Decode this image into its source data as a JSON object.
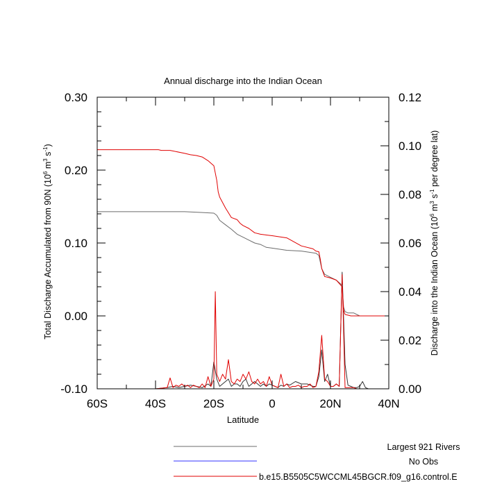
{
  "chart_data": {
    "type": "line",
    "title": "Annual discharge into the Indian Ocean",
    "xlabel": "Latitude",
    "ylabel_left": {
      "prefix": "Total Discharge Accumulated from 90N (10",
      "exp1": "6",
      "mid": " m",
      "exp2": "3",
      "mid2": " s",
      "exp3": "-1",
      "suffix": ")"
    },
    "ylabel_right": {
      "prefix": "Discharge into the Indian Ocean (10",
      "exp1": "6",
      "mid": " m",
      "exp2": "3",
      "mid2": " s",
      "exp3": "-1",
      "suffix": " per degree lat)"
    },
    "xlim": [
      -60,
      40
    ],
    "ylim_left": [
      -0.1,
      0.3
    ],
    "ylim_right": [
      0.0,
      0.12
    ],
    "x_ticks": [
      {
        "value": -60,
        "label": "60S"
      },
      {
        "value": -40,
        "label": "40S"
      },
      {
        "value": -20,
        "label": "20S"
      },
      {
        "value": 0,
        "label": "0"
      },
      {
        "value": 20,
        "label": "20N"
      },
      {
        "value": 40,
        "label": "40N"
      }
    ],
    "y_ticks_left": [
      {
        "value": 0.3,
        "label": "0.30"
      },
      {
        "value": 0.2,
        "label": "0.20"
      },
      {
        "value": 0.1,
        "label": "0.10"
      },
      {
        "value": 0.0,
        "label": "0.00"
      },
      {
        "value": -0.1,
        "label": "-0.10"
      }
    ],
    "y_ticks_right": [
      {
        "value": 0.12,
        "label": "0.12"
      },
      {
        "value": 0.1,
        "label": "0.10"
      },
      {
        "value": 0.08,
        "label": "0.08"
      },
      {
        "value": 0.06,
        "label": "0.06"
      },
      {
        "value": 0.04,
        "label": "0.04"
      },
      {
        "value": 0.02,
        "label": "0.02"
      },
      {
        "value": 0.0,
        "label": "0.00"
      }
    ],
    "series": [
      {
        "name": "Largest 921 Rivers",
        "color": "#6b6b6b",
        "axis": "left",
        "x": [
          -60,
          -40,
          -30,
          -25,
          -20,
          -19,
          -18,
          -16,
          -14,
          -12,
          -10,
          -8,
          -6,
          -4,
          -2,
          0,
          5,
          10,
          15,
          16,
          17,
          18,
          20,
          22,
          24,
          24.5,
          25,
          26,
          28,
          30,
          40
        ],
        "y": [
          0.143,
          0.143,
          0.143,
          0.142,
          0.141,
          0.138,
          0.131,
          0.125,
          0.119,
          0.112,
          0.108,
          0.104,
          0.1,
          0.098,
          0.094,
          0.093,
          0.09,
          0.089,
          0.086,
          0.083,
          0.065,
          0.057,
          0.053,
          0.049,
          0.042,
          0.012,
          0.006,
          0.004,
          0.004,
          0.0,
          0.0
        ]
      },
      {
        "name": "No Obs",
        "color": "#3333ff",
        "axis": "left",
        "x": [],
        "y": []
      },
      {
        "name": "b.e15.B5505C5WCCML45BGCR.f09_g16.control.E",
        "color": "#e00000",
        "axis": "left",
        "x": [
          -60,
          -40,
          -39,
          -38,
          -35,
          -30,
          -28,
          -26,
          -24,
          -22,
          -20,
          -19,
          -18.5,
          -18,
          -16,
          -14,
          -12,
          -11,
          -10,
          -8,
          -6,
          -4,
          -2,
          0,
          5,
          10,
          14,
          15,
          16,
          16.5,
          17,
          18,
          20,
          22,
          24,
          24.5,
          25,
          27,
          30,
          40
        ],
        "y": [
          0.228,
          0.228,
          0.228,
          0.227,
          0.227,
          0.223,
          0.221,
          0.22,
          0.218,
          0.213,
          0.206,
          0.186,
          0.17,
          0.163,
          0.148,
          0.135,
          0.132,
          0.127,
          0.124,
          0.12,
          0.114,
          0.112,
          0.111,
          0.11,
          0.107,
          0.096,
          0.092,
          0.089,
          0.088,
          0.078,
          0.065,
          0.054,
          0.052,
          0.049,
          0.04,
          0.008,
          0.002,
          0.0,
          0.0,
          0.0
        ]
      }
    ],
    "spikes": [
      {
        "name": "Largest 921 Rivers",
        "color": "#333333",
        "axis": "right",
        "x": [
          -60,
          -50,
          -40,
          -36,
          -34,
          -32,
          -30,
          -28,
          -26,
          -24,
          -22,
          -21,
          -20,
          -19,
          -18,
          -17,
          -16,
          -15,
          -14,
          -13,
          -12,
          -11,
          -10,
          -9,
          -8,
          -7,
          -6,
          -5,
          -4,
          -3,
          -2,
          -1,
          0,
          1,
          2,
          3,
          4,
          5,
          6,
          8,
          10,
          12,
          14,
          15,
          16,
          17,
          18,
          19,
          20,
          21,
          22,
          23,
          24,
          25,
          26,
          27,
          28,
          29,
          30,
          31,
          32,
          33,
          40
        ],
        "y": [
          0,
          0,
          0,
          0.0005,
          0.001,
          0.0005,
          0.001,
          0.0015,
          0.001,
          0.0005,
          0.002,
          0.001,
          0.011,
          0.004,
          0.001,
          0.002,
          0.003,
          0.004,
          0.001,
          0.002,
          0.002,
          0.001,
          0.003,
          0.004,
          0.001,
          0.002,
          0.003,
          0.002,
          0.001,
          0.002,
          0.001,
          0.002,
          0.0015,
          0.001,
          0.0005,
          0.0015,
          0.001,
          0.002,
          0.0015,
          0.003,
          0.002,
          0.002,
          0.001,
          0.001,
          0.005,
          0.016,
          0.003,
          0.006,
          0.001,
          0.001,
          0.002,
          0.001,
          0.048,
          0.01,
          0.0015,
          0.001,
          0.0005,
          0.0005,
          0.001,
          0.003,
          0.0005,
          0,
          0
        ]
      },
      {
        "name": "b.e15.B5505C5WCCML45BGCR.f09_g16.control.E",
        "color": "#e00000",
        "axis": "right",
        "x": [
          -60,
          -50,
          -40,
          -36,
          -35,
          -34,
          -33,
          -32,
          -31,
          -30,
          -29,
          -28,
          -27,
          -26,
          -25,
          -24,
          -23,
          -22,
          -21,
          -20,
          -19.5,
          -19,
          -18,
          -17,
          -16,
          -15,
          -14,
          -13,
          -12,
          -11,
          -10,
          -9,
          -8,
          -7,
          -6,
          -5,
          -4,
          -3,
          -2,
          -1,
          0,
          1,
          2,
          3,
          4,
          5,
          6,
          7,
          8,
          9,
          10,
          11,
          12,
          13,
          14,
          15,
          16,
          17,
          18,
          19,
          20,
          21,
          22,
          23,
          24,
          25,
          26,
          27,
          28,
          29,
          30,
          40
        ],
        "y": [
          0,
          0,
          0,
          0.0005,
          0.0045,
          0.0005,
          0.0015,
          0.001,
          0.002,
          0.001,
          0.0015,
          0.0005,
          0.0015,
          0.001,
          0.0005,
          0.002,
          0.0005,
          0.005,
          0.001,
          0.004,
          0.04,
          0.006,
          0.003,
          0.006,
          0.004,
          0.012,
          0.003,
          0.002,
          0.004,
          0.003,
          0.006,
          0.004,
          0.007,
          0.003,
          0.002,
          0.004,
          0.002,
          0.003,
          0.001,
          0.005,
          0.0015,
          0.001,
          0.0005,
          0.006,
          0.001,
          0.002,
          0.0005,
          0.001,
          0.001,
          0.0015,
          0.0005,
          0.001,
          0.001,
          0.002,
          0.0005,
          0.001,
          0.007,
          0.022,
          0.004,
          0.003,
          0.001,
          0.001,
          0.002,
          0.001,
          0.047,
          0.0005,
          0.0005,
          0.0005,
          0.0005,
          0,
          0,
          0
        ]
      }
    ],
    "legend": [
      {
        "label": "Largest 921 Rivers",
        "color": "#6b6b6b"
      },
      {
        "label": "No Obs",
        "color": "#3333ff"
      },
      {
        "label": "b.e15.B5505C5WCCML45BGCR.f09_g16.control.E",
        "color": "#e00000"
      }
    ]
  }
}
